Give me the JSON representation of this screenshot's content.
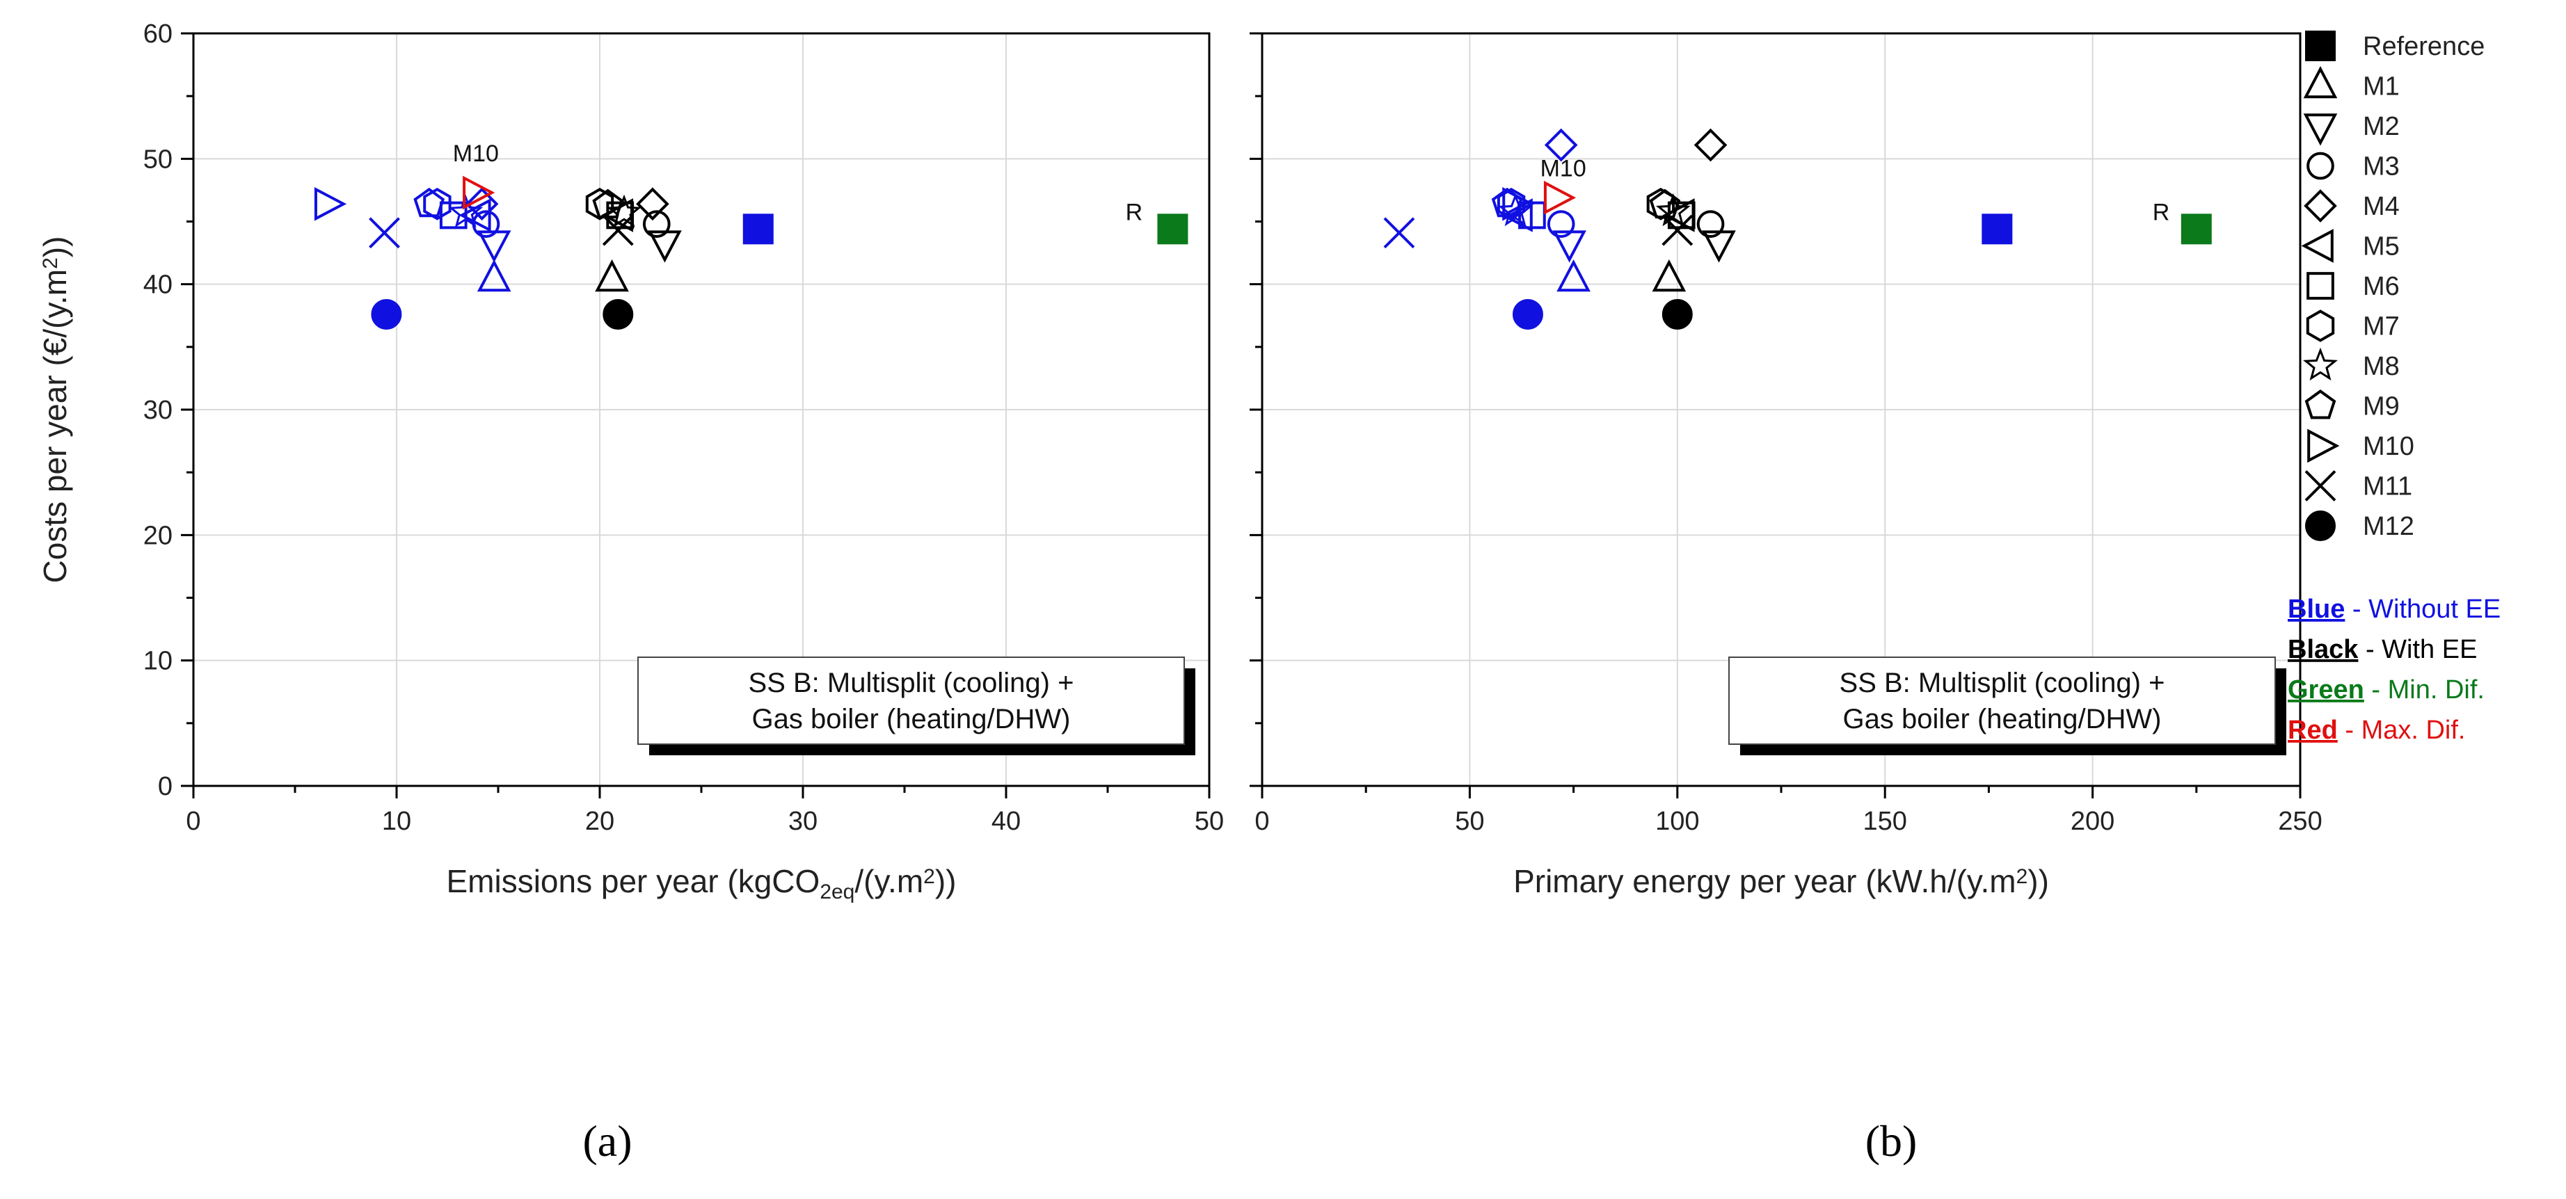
{
  "colors": {
    "blue": "#1010e0",
    "black": "#000000",
    "green": "#0a7a1a",
    "red": "#e01010",
    "grid": "#d9d9d9"
  },
  "chart_data": [
    {
      "type": "scatter",
      "panel_label": "(a)",
      "xlabel": "Emissions per year (kgCO",
      "xlabel_sub": "2eq",
      "xlabel_mid": "/(y.m",
      "xlabel_sup": "2",
      "xlabel_end": "))",
      "ylabel": "Costs per year (€/(y.m",
      "ylabel_sup": "2",
      "ylabel_end": "))",
      "xlim": [
        0,
        50
      ],
      "ylim": [
        0,
        60
      ],
      "xticks": [
        0,
        10,
        20,
        30,
        40,
        50
      ],
      "yticks": [
        0,
        10,
        20,
        30,
        40,
        50,
        60
      ],
      "grid": true,
      "note_lines": [
        "SS B: Multisplit (cooling) +",
        "Gas boiler (heating/DHW)"
      ],
      "annotations": [
        {
          "text": "M10",
          "x": 13.9,
          "y": 49.8
        },
        {
          "text": "R",
          "x": 46.3,
          "y": 45.1
        }
      ],
      "points": [
        {
          "marker": "Reference",
          "color": "blue",
          "filled": true,
          "x": 27.8,
          "y": 44.4
        },
        {
          "marker": "Reference",
          "color": "green",
          "filled": true,
          "x": 48.2,
          "y": 44.4
        },
        {
          "marker": "M1",
          "color": "blue",
          "filled": false,
          "x": 14.8,
          "y": 40.4
        },
        {
          "marker": "M1",
          "color": "black",
          "filled": false,
          "x": 20.6,
          "y": 40.4
        },
        {
          "marker": "M2",
          "color": "blue",
          "filled": false,
          "x": 14.8,
          "y": 43.3
        },
        {
          "marker": "M2",
          "color": "black",
          "filled": false,
          "x": 23.2,
          "y": 43.3
        },
        {
          "marker": "M3",
          "color": "blue",
          "filled": false,
          "x": 14.4,
          "y": 44.8
        },
        {
          "marker": "M3",
          "color": "black",
          "filled": false,
          "x": 22.8,
          "y": 44.8
        },
        {
          "marker": "M4",
          "color": "blue",
          "filled": false,
          "x": 14.2,
          "y": 46.4
        },
        {
          "marker": "M4",
          "color": "black",
          "filled": false,
          "x": 22.6,
          "y": 46.4
        },
        {
          "marker": "M5",
          "color": "blue",
          "filled": false,
          "x": 14.0,
          "y": 45.5
        },
        {
          "marker": "M5",
          "color": "black",
          "filled": false,
          "x": 21.0,
          "y": 45.5
        },
        {
          "marker": "M6",
          "color": "blue",
          "filled": false,
          "x": 12.8,
          "y": 45.5
        },
        {
          "marker": "M6",
          "color": "black",
          "filled": false,
          "x": 21.0,
          "y": 45.5
        },
        {
          "marker": "M7",
          "color": "blue",
          "filled": false,
          "x": 12.0,
          "y": 46.4
        },
        {
          "marker": "M7",
          "color": "black",
          "filled": false,
          "x": 20.0,
          "y": 46.4
        },
        {
          "marker": "M8",
          "color": "blue",
          "filled": false,
          "x": 13.4,
          "y": 45.7
        },
        {
          "marker": "M8",
          "color": "black",
          "filled": false,
          "x": 21.2,
          "y": 45.7
        },
        {
          "marker": "M9",
          "color": "blue",
          "filled": false,
          "x": 11.6,
          "y": 46.4
        },
        {
          "marker": "M9",
          "color": "black",
          "filled": false,
          "x": 20.4,
          "y": 46.3
        },
        {
          "marker": "M10",
          "color": "blue",
          "filled": false,
          "x": 6.6,
          "y": 46.4
        },
        {
          "marker": "M10",
          "color": "red",
          "filled": false,
          "x": 13.9,
          "y": 47.3
        },
        {
          "marker": "M11",
          "color": "blue",
          "filled": false,
          "x": 9.4,
          "y": 44.1
        },
        {
          "marker": "M11",
          "color": "black",
          "filled": false,
          "x": 20.9,
          "y": 44.3
        },
        {
          "marker": "M12",
          "color": "blue",
          "filled": true,
          "x": 9.5,
          "y": 37.6
        },
        {
          "marker": "M12",
          "color": "black",
          "filled": true,
          "x": 20.9,
          "y": 37.6
        }
      ]
    },
    {
      "type": "scatter",
      "panel_label": "(b)",
      "xlabel": "Primary energy per year (kW.h/(y.m",
      "xlabel_sup": "2",
      "xlabel_end": "))",
      "xlim": [
        0,
        250
      ],
      "ylim": [
        0,
        60
      ],
      "xticks": [
        0,
        50,
        100,
        150,
        200,
        250
      ],
      "yticks": [
        0,
        10,
        20,
        30,
        40,
        50,
        60
      ],
      "grid": true,
      "note_lines": [
        "SS B: Multisplit (cooling) +",
        "Gas boiler (heating/DHW)"
      ],
      "annotations": [
        {
          "text": "M10",
          "x": 72.5,
          "y": 48.6
        },
        {
          "text": "R",
          "x": 216.5,
          "y": 45.1
        }
      ],
      "points": [
        {
          "marker": "Reference",
          "color": "blue",
          "filled": true,
          "x": 177,
          "y": 44.4
        },
        {
          "marker": "Reference",
          "color": "green",
          "filled": true,
          "x": 225,
          "y": 44.4
        },
        {
          "marker": "M1",
          "color": "blue",
          "filled": false,
          "x": 75,
          "y": 40.4
        },
        {
          "marker": "M1",
          "color": "black",
          "filled": false,
          "x": 98,
          "y": 40.4
        },
        {
          "marker": "M2",
          "color": "blue",
          "filled": false,
          "x": 74,
          "y": 43.3
        },
        {
          "marker": "M2",
          "color": "black",
          "filled": false,
          "x": 110,
          "y": 43.3
        },
        {
          "marker": "M3",
          "color": "blue",
          "filled": false,
          "x": 72,
          "y": 44.8
        },
        {
          "marker": "M3",
          "color": "black",
          "filled": false,
          "x": 108,
          "y": 44.8
        },
        {
          "marker": "M4",
          "color": "blue",
          "filled": false,
          "x": 72,
          "y": 51.1
        },
        {
          "marker": "M4",
          "color": "black",
          "filled": false,
          "x": 108,
          "y": 51.1
        },
        {
          "marker": "M5",
          "color": "blue",
          "filled": false,
          "x": 62,
          "y": 45.5
        },
        {
          "marker": "M5",
          "color": "black",
          "filled": false,
          "x": 101,
          "y": 45.5
        },
        {
          "marker": "M6",
          "color": "blue",
          "filled": false,
          "x": 65,
          "y": 45.5
        },
        {
          "marker": "M6",
          "color": "black",
          "filled": false,
          "x": 101,
          "y": 45.5
        },
        {
          "marker": "M7",
          "color": "blue",
          "filled": false,
          "x": 60,
          "y": 46.4
        },
        {
          "marker": "M7",
          "color": "black",
          "filled": false,
          "x": 96,
          "y": 46.4
        },
        {
          "marker": "M8",
          "color": "blue",
          "filled": false,
          "x": 61,
          "y": 45.8
        },
        {
          "marker": "M8",
          "color": "black",
          "filled": false,
          "x": 99,
          "y": 45.8
        },
        {
          "marker": "M9",
          "color": "blue",
          "filled": false,
          "x": 59,
          "y": 46.4
        },
        {
          "marker": "M9",
          "color": "black",
          "filled": false,
          "x": 97,
          "y": 46.3
        },
        {
          "marker": "M10",
          "color": "blue",
          "filled": false,
          "x": 61,
          "y": 46.4
        },
        {
          "marker": "M10",
          "color": "red",
          "filled": false,
          "x": 71,
          "y": 46.9
        },
        {
          "marker": "M11",
          "color": "blue",
          "filled": false,
          "x": 33,
          "y": 44.1
        },
        {
          "marker": "M11",
          "color": "black",
          "filled": false,
          "x": 100,
          "y": 44.3
        },
        {
          "marker": "M12",
          "color": "blue",
          "filled": true,
          "x": 64,
          "y": 37.6
        },
        {
          "marker": "M12",
          "color": "black",
          "filled": true,
          "x": 100,
          "y": 37.6
        }
      ]
    }
  ],
  "legend": {
    "placement": "right",
    "entries": [
      {
        "marker": "Reference",
        "label": "Reference"
      },
      {
        "marker": "M1",
        "label": "M1"
      },
      {
        "marker": "M2",
        "label": "M2"
      },
      {
        "marker": "M3",
        "label": "M3"
      },
      {
        "marker": "M4",
        "label": "M4"
      },
      {
        "marker": "M5",
        "label": "M5"
      },
      {
        "marker": "M6",
        "label": "M6"
      },
      {
        "marker": "M7",
        "label": "M7"
      },
      {
        "marker": "M8",
        "label": "M8"
      },
      {
        "marker": "M9",
        "label": "M9"
      },
      {
        "marker": "M10",
        "label": "M10"
      },
      {
        "marker": "M11",
        "label": "M11"
      },
      {
        "marker": "M12",
        "label": "M12"
      }
    ]
  },
  "color_key": [
    {
      "color": "blue",
      "word": "Blue",
      "rest": " - Without EE"
    },
    {
      "color": "black",
      "word": "Black",
      "rest": " - With EE"
    },
    {
      "color": "green",
      "word": "Green",
      "rest": " - Min. Dif."
    },
    {
      "color": "red",
      "word": "Red",
      "rest": " - Max. Dif."
    }
  ]
}
